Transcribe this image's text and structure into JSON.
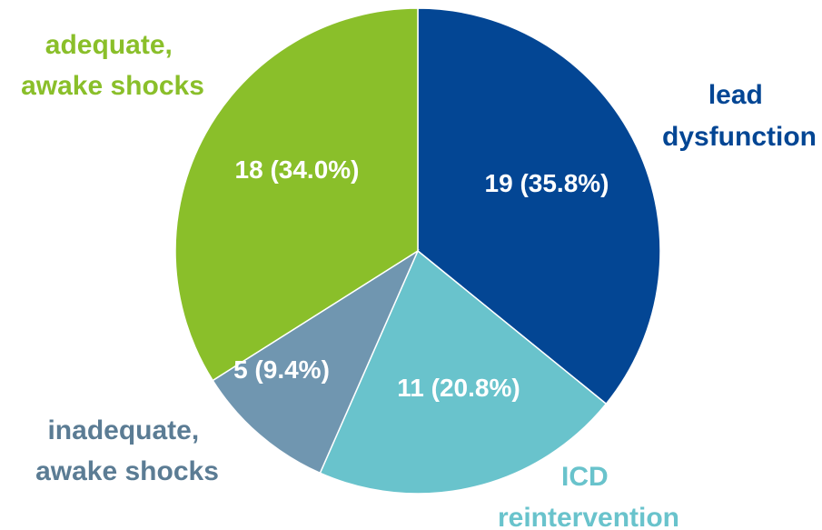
{
  "chart_data": {
    "type": "pie",
    "slices": [
      {
        "category_lines": [
          "lead",
          "dysfunction"
        ],
        "value": 19,
        "label": "19 (35.8%)",
        "color": "#034694"
      },
      {
        "category_lines": [
          "ICD",
          "reintervention"
        ],
        "value": 11,
        "label": "11 (20.8%)",
        "color": "#69c3cc"
      },
      {
        "category_lines": [
          "inadequate,",
          "awake shocks"
        ],
        "value": 5,
        "label": "5 (9.4%)",
        "color": "#7096b0"
      },
      {
        "category_lines": [
          "adequate,",
          "awake shocks"
        ],
        "value": 18,
        "label": "18 (34.0%)",
        "color": "#8abf2a"
      }
    ],
    "label_colors": [
      "#034694",
      "#69c3cc",
      "#5b7c94",
      "#8abf2a"
    ],
    "start": "top, clockwise"
  }
}
